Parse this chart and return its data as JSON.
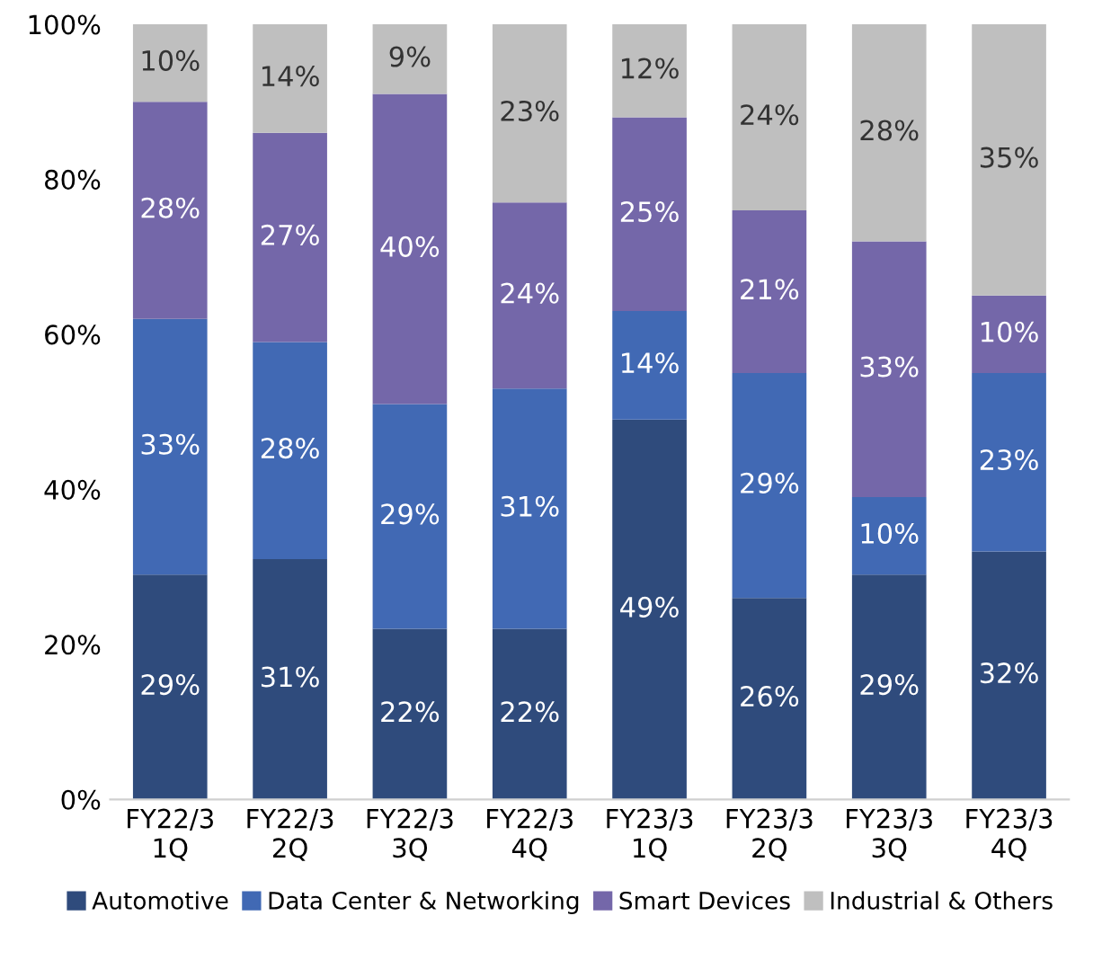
{
  "chart_data": {
    "type": "bar",
    "stacked": true,
    "categories": [
      "FY22/3\n1Q",
      "FY22/3\n2Q",
      "FY22/3\n3Q",
      "FY22/3\n4Q",
      "FY23/3\n1Q",
      "FY23/3\n2Q",
      "FY23/3\n3Q",
      "FY23/3\n4Q"
    ],
    "series": [
      {
        "name": "Automotive",
        "color": "#2f4b7c",
        "values": [
          29,
          31,
          22,
          22,
          49,
          26,
          29,
          32
        ],
        "value_labels": [
          "29%",
          "31%",
          "22%",
          "22%",
          "49%",
          "26%",
          "29%",
          "32%"
        ]
      },
      {
        "name": "Data Center & Networking",
        "color": "#4169b4",
        "values": [
          33,
          28,
          29,
          31,
          14,
          29,
          10,
          23
        ],
        "value_labels": [
          "33%",
          "28%",
          "29%",
          "31%",
          "14%",
          "29%",
          "10%",
          "23%"
        ]
      },
      {
        "name": "Smart Devices",
        "color": "#7467a9",
        "values": [
          28,
          27,
          40,
          24,
          25,
          21,
          33,
          10
        ],
        "value_labels": [
          "28%",
          "27%",
          "40%",
          "24%",
          "25%",
          "21%",
          "33%",
          "10%"
        ]
      },
      {
        "name": "Industrial & Others",
        "color": "#bfbfbf",
        "values": [
          10,
          14,
          9,
          23,
          12,
          24,
          28,
          35
        ],
        "value_labels": [
          "10%",
          "14%",
          "9%",
          "23%",
          "12%",
          "24%",
          "28%",
          "35%"
        ]
      }
    ],
    "ylim": [
      0,
      100
    ],
    "yticks": [
      {
        "value": 0,
        "label": "0%"
      },
      {
        "value": 20,
        "label": "20%"
      },
      {
        "value": 40,
        "label": "40%"
      },
      {
        "value": 60,
        "label": "60%"
      },
      {
        "value": 80,
        "label": "80%"
      },
      {
        "value": 100,
        "label": "100%"
      }
    ],
    "grid": false,
    "legend": "bottom"
  }
}
